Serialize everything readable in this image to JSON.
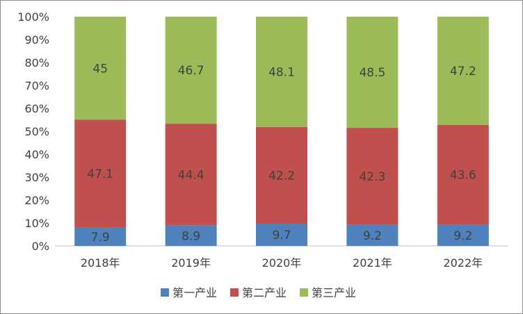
{
  "chart_data": {
    "type": "bar",
    "stacked": true,
    "percent": true,
    "categories": [
      "2018年",
      "2019年",
      "2020年",
      "2021年",
      "2022年"
    ],
    "series": [
      {
        "name": "第一产业",
        "color": "#4f81bd",
        "values": [
          7.9,
          8.9,
          9.7,
          9.2,
          9.2
        ]
      },
      {
        "name": "第二产业",
        "color": "#c0504d",
        "values": [
          47.1,
          44.4,
          42.2,
          42.3,
          43.6
        ]
      },
      {
        "name": "第三产业",
        "color": "#9bbb59",
        "values": [
          45,
          46.7,
          48.1,
          48.5,
          47.2
        ]
      }
    ],
    "yticks": [
      "0%",
      "10%",
      "20%",
      "30%",
      "40%",
      "50%",
      "60%",
      "70%",
      "80%",
      "90%",
      "100%"
    ],
    "ylim": [
      0,
      100
    ],
    "grid": false,
    "legend": "bottom"
  }
}
